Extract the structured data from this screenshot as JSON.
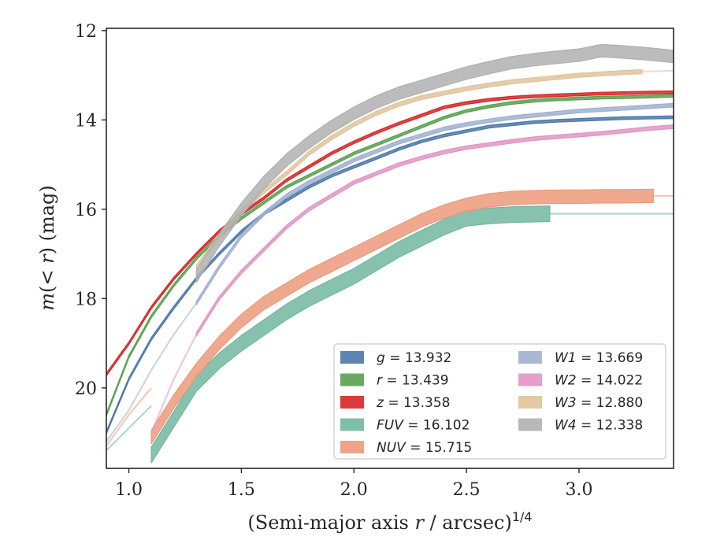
{
  "chart_data": {
    "type": "line",
    "xlabel": "(Semi-major axis r / arcsec)^1/4",
    "ylabel": "m(< r) (mag)",
    "xlim": [
      0.9,
      3.42
    ],
    "ylim": [
      21.8,
      11.95
    ],
    "y_inverted": true,
    "x_ticks": [
      1.0,
      1.5,
      2.0,
      2.5,
      3.0
    ],
    "x_tick_labels": [
      "1.0",
      "1.5",
      "2.0",
      "2.5",
      "3.0"
    ],
    "y_ticks": [
      12,
      14,
      16,
      18,
      20
    ],
    "y_tick_labels": [
      "12",
      "14",
      "16",
      "18",
      "20"
    ],
    "grid": false,
    "legend_position": "bottom-right",
    "series": [
      {
        "name": "g",
        "legend_label": "g = 13.932",
        "color": "#4c78a8",
        "band_width": 0.06,
        "x": [
          0.9,
          1.0,
          1.1,
          1.2,
          1.3,
          1.4,
          1.5,
          1.6,
          1.7,
          1.8,
          1.9,
          2.0,
          2.1,
          2.2,
          2.3,
          2.4,
          2.5,
          2.6,
          2.7,
          2.8,
          2.9,
          3.0,
          3.1,
          3.2,
          3.3,
          3.42
        ],
        "y": [
          21.0,
          19.8,
          18.9,
          18.2,
          17.55,
          17.0,
          16.5,
          16.1,
          15.8,
          15.5,
          15.25,
          15.05,
          14.85,
          14.65,
          14.48,
          14.35,
          14.25,
          14.15,
          14.1,
          14.05,
          14.02,
          14.0,
          13.98,
          13.96,
          13.95,
          13.94
        ]
      },
      {
        "name": "r",
        "legend_label": "r = 13.439",
        "color": "#59a14f",
        "band_width": 0.06,
        "x": [
          0.9,
          1.0,
          1.1,
          1.2,
          1.3,
          1.4,
          1.5,
          1.6,
          1.7,
          1.8,
          1.9,
          2.0,
          2.1,
          2.2,
          2.3,
          2.4,
          2.5,
          2.6,
          2.7,
          2.8,
          2.9,
          3.0,
          3.1,
          3.2,
          3.3,
          3.42
        ],
        "y": [
          20.6,
          19.3,
          18.4,
          17.7,
          17.1,
          16.6,
          16.2,
          15.85,
          15.5,
          15.25,
          15.0,
          14.75,
          14.55,
          14.35,
          14.15,
          13.95,
          13.8,
          13.7,
          13.62,
          13.57,
          13.54,
          13.52,
          13.5,
          13.49,
          13.48,
          13.46
        ]
      },
      {
        "name": "z",
        "legend_label": "z = 13.358",
        "color": "#d62728",
        "band_width": 0.06,
        "x": [
          0.9,
          1.0,
          1.1,
          1.2,
          1.3,
          1.4,
          1.5,
          1.6,
          1.7,
          1.8,
          1.9,
          2.0,
          2.1,
          2.2,
          2.3,
          2.4,
          2.5,
          2.6,
          2.7,
          2.8,
          2.9,
          3.0,
          3.1,
          3.2,
          3.3,
          3.42
        ],
        "y": [
          19.7,
          19.0,
          18.2,
          17.55,
          17.0,
          16.5,
          16.1,
          15.75,
          15.35,
          15.05,
          14.75,
          14.5,
          14.28,
          14.08,
          13.9,
          13.72,
          13.62,
          13.55,
          13.5,
          13.47,
          13.45,
          13.43,
          13.41,
          13.4,
          13.39,
          13.38
        ]
      },
      {
        "name": "FUV",
        "legend_label": "FUV = 16.102",
        "color": "#72b7a1",
        "band_width": 0.35,
        "x": [
          1.1,
          1.2,
          1.3,
          1.4,
          1.5,
          1.6,
          1.7,
          1.8,
          1.9,
          2.0,
          2.1,
          2.2,
          2.3,
          2.4,
          2.5,
          2.6,
          2.7,
          2.87
        ],
        "y": [
          21.5,
          20.7,
          19.9,
          19.4,
          19.0,
          18.65,
          18.3,
          18.0,
          17.75,
          17.5,
          17.2,
          16.9,
          16.65,
          16.4,
          16.2,
          16.15,
          16.12,
          16.1
        ],
        "ext_x": [
          0.9,
          1.0,
          1.1
        ],
        "ext_y": [
          21.4,
          20.9,
          20.4
        ],
        "tail_x": [
          2.87,
          3.42
        ],
        "tail_y": [
          16.1,
          16.1
        ]
      },
      {
        "name": "NUV",
        "legend_label": "NUV = 15.715",
        "color": "#ec9a7a",
        "band_width": 0.3,
        "x": [
          1.1,
          1.2,
          1.3,
          1.4,
          1.5,
          1.6,
          1.7,
          1.8,
          1.9,
          2.0,
          2.1,
          2.2,
          2.3,
          2.4,
          2.5,
          2.6,
          2.7,
          2.8,
          2.9,
          3.0,
          3.1,
          3.2,
          3.33
        ],
        "y": [
          21.1,
          20.3,
          19.6,
          19.0,
          18.5,
          18.1,
          17.8,
          17.5,
          17.25,
          17.0,
          16.75,
          16.5,
          16.25,
          16.05,
          15.9,
          15.8,
          15.75,
          15.73,
          15.72,
          15.72,
          15.71,
          15.71,
          15.7
        ],
        "ext_x": [
          0.9,
          1.0,
          1.1
        ],
        "ext_y": [
          21.3,
          20.6,
          20.0
        ],
        "tail_x": [
          3.33,
          3.42
        ],
        "tail_y": [
          15.7,
          15.7
        ]
      },
      {
        "name": "W1",
        "legend_label": "W1 = 13.669",
        "color": "#9fb0d0",
        "band_width": 0.08,
        "x": [
          1.3,
          1.4,
          1.5,
          1.6,
          1.7,
          1.8,
          1.9,
          2.0,
          2.1,
          2.2,
          2.3,
          2.4,
          2.5,
          2.6,
          2.7,
          2.8,
          2.9,
          3.0,
          3.1,
          3.2,
          3.3,
          3.42
        ],
        "y": [
          18.1,
          17.3,
          16.6,
          16.1,
          15.7,
          15.4,
          15.15,
          14.9,
          14.7,
          14.5,
          14.35,
          14.2,
          14.1,
          14.02,
          13.95,
          13.9,
          13.85,
          13.8,
          13.77,
          13.74,
          13.71,
          13.67
        ],
        "ext_x": [
          0.9,
          1.0,
          1.1,
          1.2,
          1.3
        ],
        "ext_y": [
          21.2,
          20.5,
          19.6,
          18.8,
          18.1
        ]
      },
      {
        "name": "W2",
        "legend_label": "W2 = 14.022",
        "color": "#e195c4",
        "band_width": 0.08,
        "x": [
          1.3,
          1.4,
          1.5,
          1.6,
          1.7,
          1.8,
          1.9,
          2.0,
          2.1,
          2.2,
          2.3,
          2.4,
          2.5,
          2.6,
          2.7,
          2.8,
          2.9,
          3.0,
          3.1,
          3.2,
          3.3,
          3.42
        ],
        "y": [
          18.8,
          18.0,
          17.4,
          16.9,
          16.4,
          16.0,
          15.7,
          15.4,
          15.2,
          15.0,
          14.85,
          14.72,
          14.62,
          14.55,
          14.48,
          14.42,
          14.38,
          14.34,
          14.3,
          14.25,
          14.2,
          14.15
        ],
        "ext_x": [
          1.1,
          1.2,
          1.3
        ],
        "ext_y": [
          21.0,
          19.8,
          18.8
        ]
      },
      {
        "name": "W3",
        "legend_label": "W3 = 12.880",
        "color": "#e0c39b",
        "band_width": 0.09,
        "x": [
          1.3,
          1.4,
          1.5,
          1.6,
          1.7,
          1.8,
          1.9,
          2.0,
          2.1,
          2.2,
          2.3,
          2.4,
          2.5,
          2.6,
          2.7,
          2.8,
          2.9,
          3.0,
          3.1,
          3.2,
          3.28
        ],
        "y": [
          17.3,
          16.6,
          16.05,
          15.6,
          15.2,
          14.75,
          14.4,
          14.1,
          13.85,
          13.65,
          13.5,
          13.4,
          13.3,
          13.22,
          13.15,
          13.1,
          13.05,
          13.0,
          12.97,
          12.94,
          12.92
        ],
        "tail_x": [
          3.28,
          3.42
        ],
        "tail_y": [
          12.92,
          12.9
        ]
      },
      {
        "name": "W4",
        "legend_label": "W4 = 12.338",
        "color": "#b0b0b0",
        "band_width": 0.28,
        "x": [
          1.3,
          1.4,
          1.5,
          1.6,
          1.7,
          1.8,
          1.9,
          2.0,
          2.1,
          2.2,
          2.3,
          2.4,
          2.5,
          2.6,
          2.7,
          2.8,
          2.9,
          3.0,
          3.1,
          3.2,
          3.3,
          3.42
        ],
        "y": [
          17.5,
          16.7,
          16.0,
          15.4,
          14.9,
          14.5,
          14.15,
          13.85,
          13.6,
          13.4,
          13.25,
          13.1,
          12.95,
          12.83,
          12.72,
          12.65,
          12.6,
          12.55,
          12.45,
          12.48,
          12.52,
          12.58
        ]
      }
    ]
  }
}
